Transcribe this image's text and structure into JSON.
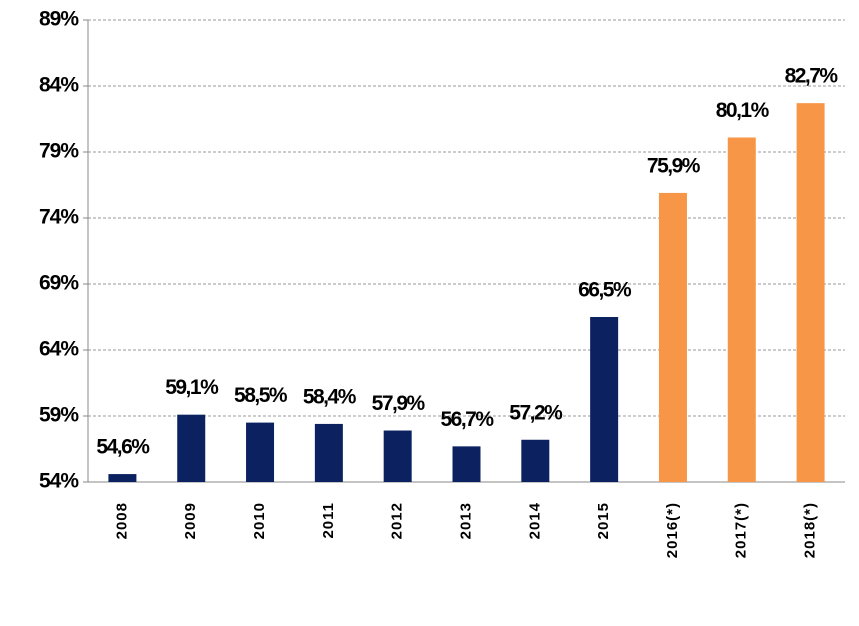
{
  "chart_data": {
    "type": "bar",
    "categories": [
      "2008",
      "2009",
      "2010",
      "2011",
      "2012",
      "2013",
      "2014",
      "2015",
      "2016(*)",
      "2017(*)",
      "2018(*)"
    ],
    "values": [
      54.6,
      59.1,
      58.5,
      58.4,
      57.9,
      56.7,
      57.2,
      66.5,
      75.9,
      80.1,
      82.7
    ],
    "value_labels": [
      "54,6%",
      "59,1%",
      "58,5%",
      "58,4%",
      "57,9%",
      "56,7%",
      "57,2%",
      "66,5%",
      "75,9%",
      "80,1%",
      "82,7%"
    ],
    "colors": [
      "#0c2160",
      "#0c2160",
      "#0c2160",
      "#0c2160",
      "#0c2160",
      "#0c2160",
      "#0c2160",
      "#0c2160",
      "#f79646",
      "#f79646",
      "#f79646"
    ],
    "ylim": [
      54,
      89
    ],
    "yticks": [
      {
        "value": 54,
        "label": "54%"
      },
      {
        "value": 59,
        "label": "59%"
      },
      {
        "value": 64,
        "label": "64%"
      },
      {
        "value": 69,
        "label": "69%"
      },
      {
        "value": 74,
        "label": "74%"
      },
      {
        "value": 79,
        "label": "79%"
      },
      {
        "value": 84,
        "label": "84%"
      },
      {
        "value": 89,
        "label": "89%"
      }
    ],
    "grid": true
  }
}
